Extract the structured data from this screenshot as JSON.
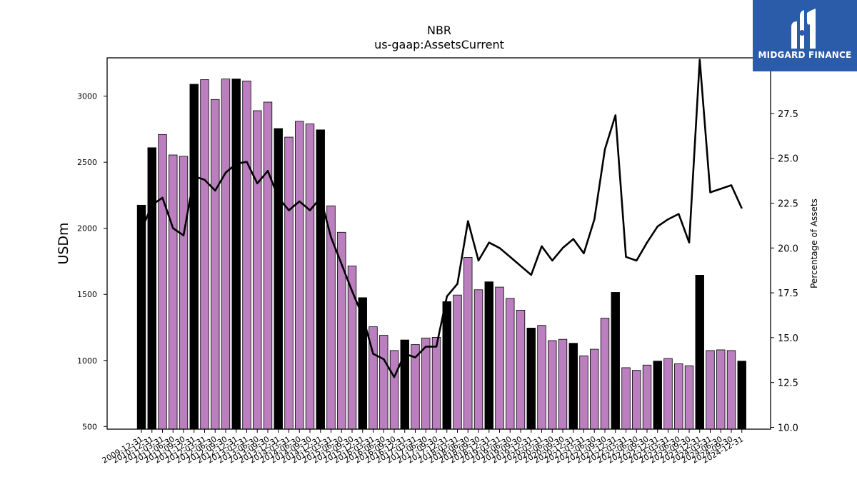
{
  "logo": {
    "text": "MIDGARD FINANCE"
  },
  "colors": {
    "purple": "#bb7fbf",
    "black": "#000000",
    "line": "#000000",
    "logo_bg": "#2a5caa"
  },
  "chart_data": {
    "type": "bar",
    "title": "NBR",
    "subtitle": "us-gaap:AssetsCurrent",
    "ylabel": "USDm",
    "y2label": "Percentage of Assets",
    "ylim": [
      480,
      3290
    ],
    "y2lim": [
      9.9,
      30.6
    ],
    "yticks": [
      500,
      1000,
      1500,
      2000,
      2500,
      3000
    ],
    "y2ticks": [
      "10.0",
      "12.5",
      "15.0",
      "17.5",
      "20.0",
      "22.5",
      "25.0",
      "27.5"
    ],
    "categories": [
      "2009-12-31",
      "2010-12-31",
      "2011-03-31",
      "2011-06-30",
      "2011-09-30",
      "2011-12-31",
      "2012-03-31",
      "2012-06-30",
      "2012-09-30",
      "2012-12-31",
      "2013-03-31",
      "2013-06-30",
      "2013-09-30",
      "2013-12-31",
      "2014-03-31",
      "2014-06-30",
      "2014-09-30",
      "2014-12-31",
      "2015-03-31",
      "2015-06-30",
      "2015-09-30",
      "2015-12-31",
      "2016-03-31",
      "2016-06-30",
      "2016-09-30",
      "2016-12-31",
      "2017-03-31",
      "2017-06-30",
      "2017-09-30",
      "2017-12-31",
      "2018-03-31",
      "2018-06-30",
      "2018-09-30",
      "2018-12-31",
      "2019-03-31",
      "2019-06-30",
      "2019-09-30",
      "2019-12-31",
      "2020-03-31",
      "2020-06-30",
      "2020-09-30",
      "2020-12-31",
      "2021-03-31",
      "2021-06-30",
      "2021-09-30",
      "2021-12-31",
      "2022-03-31",
      "2022-06-30",
      "2022-09-30",
      "2022-12-31",
      "2023-03-31",
      "2023-06-30",
      "2023-09-30",
      "2023-12-31",
      "2024-03-31",
      "2024-06-30",
      "2024-09-30",
      "2024-12-31"
    ],
    "series": [
      {
        "values": [
          2175,
          2610,
          2710,
          2555,
          2545,
          3090,
          3125,
          2975,
          3130,
          3130,
          3115,
          2890,
          2955,
          2755,
          2690,
          2810,
          2790,
          2745,
          2170,
          1970,
          1715,
          1475,
          1255,
          1190,
          1075,
          1155,
          1120,
          1170,
          1175,
          1445,
          1495,
          1780,
          1535,
          1595,
          1555,
          1470,
          1380,
          1245,
          1265,
          1150,
          1160,
          1130,
          1035,
          1085,
          1320,
          1515,
          945,
          925,
          965,
          995,
          1015,
          975,
          960,
          1645,
          1075,
          1080,
          1075,
          995
        ],
        "annual_flags": [
          1,
          1,
          0,
          0,
          0,
          1,
          0,
          0,
          0,
          1,
          0,
          0,
          0,
          1,
          0,
          0,
          0,
          1,
          0,
          0,
          0,
          1,
          0,
          0,
          0,
          1,
          0,
          0,
          0,
          1,
          0,
          0,
          0,
          1,
          0,
          0,
          0,
          1,
          0,
          0,
          0,
          1,
          0,
          0,
          0,
          1,
          0,
          0,
          0,
          1,
          0,
          0,
          0,
          1,
          0,
          0,
          0,
          1
        ]
      },
      {
        "axis": "right",
        "type": "line",
        "values": [
          21.0,
          22.4,
          22.8,
          21.1,
          20.7,
          24.0,
          23.8,
          23.2,
          24.2,
          24.7,
          24.8,
          23.6,
          24.3,
          22.8,
          22.1,
          22.6,
          22.1,
          22.8,
          20.6,
          19.1,
          17.6,
          16.2,
          14.1,
          13.8,
          12.8,
          14.1,
          13.9,
          14.5,
          14.5,
          17.3,
          18.0,
          21.5,
          19.3,
          20.3,
          20.0,
          19.5,
          19.0,
          18.5,
          20.1,
          19.3,
          20.0,
          20.5,
          19.7,
          21.6,
          25.5,
          27.4,
          19.5,
          19.3,
          20.3,
          21.2,
          21.6,
          21.9,
          20.3,
          30.5,
          23.1,
          23.3,
          23.5,
          22.2
        ]
      }
    ],
    "grid": false,
    "legend": "none"
  }
}
